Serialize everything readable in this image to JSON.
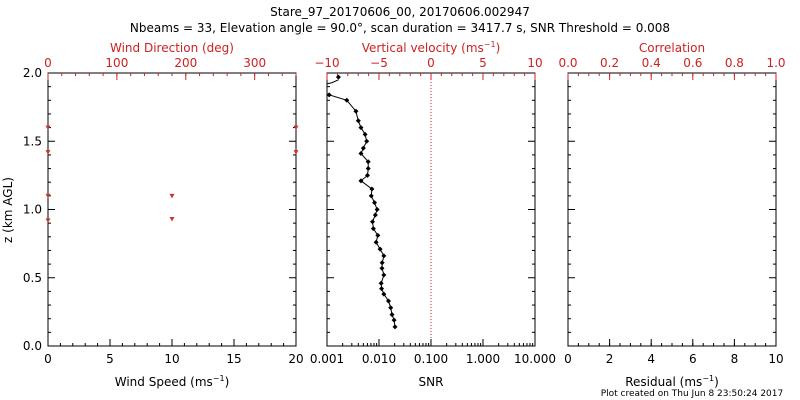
{
  "title": "Stare_97_20170606_00, 20170606.002947",
  "subtitle": "Nbeams = 33, Elevation angle = 90.0°, scan duration = 3417.7 s, SNR Threshold = 0.008",
  "footer": "Plot created on Thu Jun  8 23:50:24 2017",
  "colors": {
    "axis": "#000000",
    "top_axis": "#cc2222",
    "marker": "#cc3333",
    "ref_line": "#cc2222"
  },
  "chart_data": [
    {
      "type": "scatter",
      "name": "wind",
      "ylabel": "z (km AGL)",
      "ylim": [
        0,
        2.0
      ],
      "yticks": [
        0.0,
        0.5,
        1.0,
        1.5,
        2.0
      ],
      "ytick_labels": [
        "0.0",
        "0.5",
        "1.0",
        "1.5",
        "2.0"
      ],
      "bottom_axis": {
        "label_main": "Wind Speed (ms",
        "label_sup": "−1",
        "label_end": ")",
        "range": [
          0,
          20
        ],
        "ticks": [
          0,
          5,
          10,
          15,
          20
        ],
        "tick_labels": [
          "0",
          "5",
          "10",
          "15",
          "20"
        ]
      },
      "top_axis": {
        "label": "Wind Direction (deg)",
        "range": [
          0,
          360
        ],
        "ticks": [
          0,
          100,
          200,
          300
        ],
        "tick_labels": [
          "0",
          "100",
          "200",
          "300"
        ]
      },
      "points": [
        {
          "dir": 0,
          "z": 1.6
        },
        {
          "dir": 0,
          "z": 1.42
        },
        {
          "dir": 0,
          "z": 1.1
        },
        {
          "dir": 0,
          "z": 0.92
        },
        {
          "dir": 180,
          "z": 1.1
        },
        {
          "dir": 180,
          "z": 0.93
        },
        {
          "dir": 360,
          "z": 1.6
        },
        {
          "dir": 360,
          "z": 1.42
        }
      ]
    },
    {
      "type": "line",
      "name": "vertical-velocity-snr",
      "ylim": [
        0,
        2.0
      ],
      "bottom_axis": {
        "label": "SNR",
        "scale": "log",
        "range": [
          0.001,
          10.0
        ],
        "ticks": [
          0.001,
          0.01,
          0.1,
          1,
          10
        ],
        "tick_labels": [
          "0.001",
          "0.010",
          "0.100",
          "1.000",
          "10.000"
        ]
      },
      "top_axis": {
        "label_main": "Vertical velocity (ms",
        "label_sup": "−1",
        "label_end": ")",
        "range": [
          -10,
          10
        ],
        "ticks": [
          -10,
          -5,
          0,
          5,
          10
        ],
        "tick_labels": [
          "−10",
          "−5",
          "0",
          "5",
          "10"
        ]
      },
      "reference_line_snr": 0.1,
      "snr_profile": [
        {
          "snr": 0.0203,
          "z": 0.14
        },
        {
          "snr": 0.0195,
          "z": 0.19
        },
        {
          "snr": 0.0178,
          "z": 0.23
        },
        {
          "snr": 0.0168,
          "z": 0.28
        },
        {
          "snr": 0.0152,
          "z": 0.33
        },
        {
          "snr": 0.0124,
          "z": 0.38
        },
        {
          "snr": 0.0112,
          "z": 0.42
        },
        {
          "snr": 0.011,
          "z": 0.46
        },
        {
          "snr": 0.0124,
          "z": 0.52
        },
        {
          "snr": 0.0114,
          "z": 0.57
        },
        {
          "snr": 0.0115,
          "z": 0.61
        },
        {
          "snr": 0.0124,
          "z": 0.66
        },
        {
          "snr": 0.0105,
          "z": 0.71
        },
        {
          "snr": 0.0088,
          "z": 0.76
        },
        {
          "snr": 0.0095,
          "z": 0.81
        },
        {
          "snr": 0.0078,
          "z": 0.86
        },
        {
          "snr": 0.0075,
          "z": 0.91
        },
        {
          "snr": 0.0085,
          "z": 0.96
        },
        {
          "snr": 0.0092,
          "z": 1.0
        },
        {
          "snr": 0.0082,
          "z": 1.05
        },
        {
          "snr": 0.0071,
          "z": 1.1
        },
        {
          "snr": 0.0073,
          "z": 1.15
        },
        {
          "snr": 0.0045,
          "z": 1.21
        },
        {
          "snr": 0.006,
          "z": 1.25
        },
        {
          "snr": 0.0062,
          "z": 1.3
        },
        {
          "snr": 0.0062,
          "z": 1.35
        },
        {
          "snr": 0.0045,
          "z": 1.41
        },
        {
          "snr": 0.005,
          "z": 1.45
        },
        {
          "snr": 0.0058,
          "z": 1.5
        },
        {
          "snr": 0.0054,
          "z": 1.55
        },
        {
          "snr": 0.0045,
          "z": 1.6
        },
        {
          "snr": 0.004,
          "z": 1.65
        },
        {
          "snr": 0.0036,
          "z": 1.72
        },
        {
          "snr": 0.0024,
          "z": 1.8
        },
        {
          "snr": 0.0011,
          "z": 1.84
        }
      ],
      "top_segment": [
        {
          "vel": -10.0,
          "z": 1.92
        },
        {
          "vel": -9.5,
          "z": 1.93
        },
        {
          "vel": -8.9,
          "z": 1.95
        }
      ],
      "top_marker": {
        "vel": -8.9,
        "z": 1.97
      }
    },
    {
      "type": "empty",
      "name": "correlation-residual",
      "ylim": [
        0,
        2.0
      ],
      "bottom_axis": {
        "label_main": "Residual (ms",
        "label_sup": "−1",
        "label_end": ")",
        "range": [
          0,
          10
        ],
        "ticks": [
          0,
          2,
          4,
          6,
          8,
          10
        ],
        "tick_labels": [
          "0",
          "2",
          "4",
          "6",
          "8",
          "10"
        ]
      },
      "top_axis": {
        "label": "Correlation",
        "range": [
          0.0,
          1.0
        ],
        "ticks": [
          0.0,
          0.2,
          0.4,
          0.6,
          0.8,
          1.0
        ],
        "tick_labels": [
          "0.0",
          "0.2",
          "0.4",
          "0.6",
          "0.8",
          "1.0"
        ]
      }
    }
  ]
}
